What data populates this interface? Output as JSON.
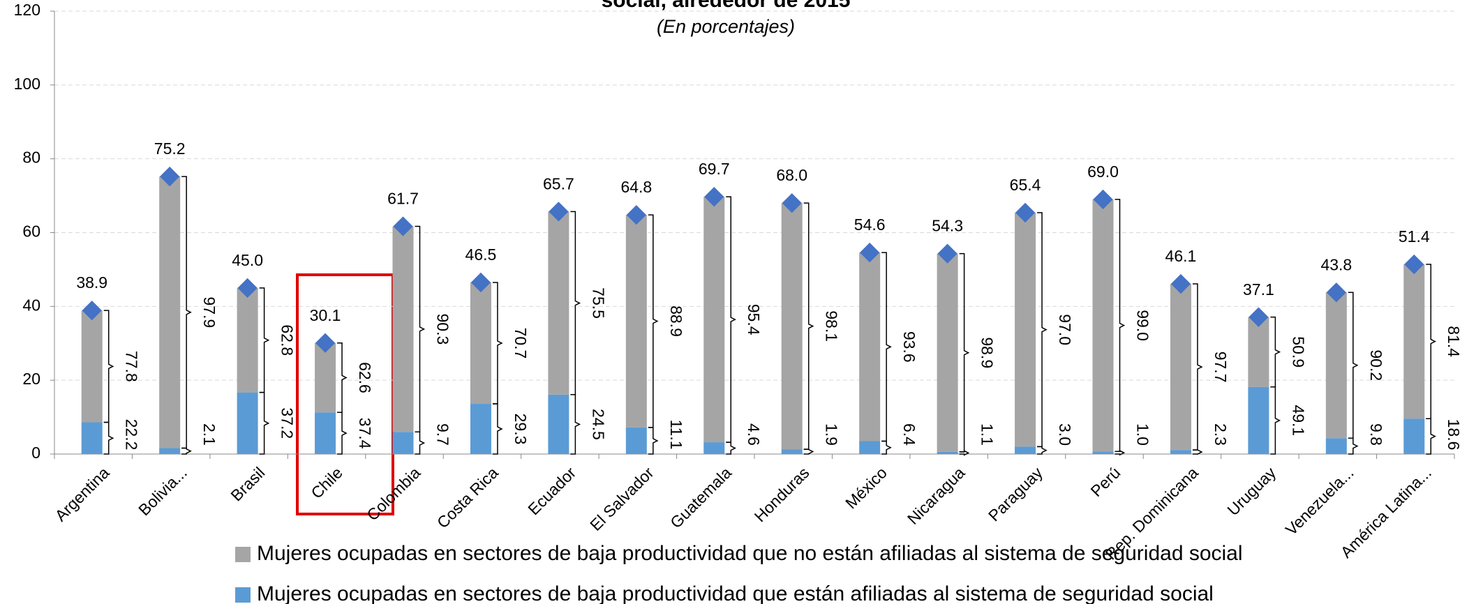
{
  "chart_data": {
    "type": "stacked-bar",
    "title": "social, alrededor de 2015",
    "subtitle": "(En porcentajes)",
    "categories": [
      "Argentina",
      "Bolivia...",
      "Brasil",
      "Chile",
      "Colombia",
      "Costa Rica",
      "Ecuador",
      "El Salvador",
      "Guatemala",
      "Honduras",
      "México",
      "Nicaragua",
      "Paraguay",
      "Perú",
      "Rep. Dominicana",
      "Uruguay",
      "Venezuela...",
      "América Latina..."
    ],
    "series": [
      {
        "name": "Mujeres ocupadas en sectores de baja productividad que están afiliadas al sistema de seguridad social",
        "color": "#5b9bd5",
        "values": [
          8.6,
          1.6,
          16.7,
          11.3,
          6.0,
          13.6,
          16.1,
          7.2,
          3.2,
          1.3,
          3.5,
          0.6,
          2.0,
          0.7,
          1.1,
          18.2,
          4.3,
          9.6
        ]
      },
      {
        "name": "Mujeres ocupadas en sectores de baja productividad que no están afiliadas al sistema de seguridad social",
        "color": "#a5a5a5",
        "values": [
          30.3,
          73.6,
          28.3,
          18.8,
          55.7,
          32.9,
          49.6,
          57.6,
          66.5,
          66.7,
          51.1,
          53.7,
          63.4,
          68.3,
          45.0,
          18.9,
          39.5,
          41.8
        ]
      }
    ],
    "totals": {
      "color": "#4472c4",
      "values": [
        38.9,
        75.2,
        45.0,
        30.1,
        61.7,
        46.5,
        65.7,
        64.8,
        69.7,
        68.0,
        54.6,
        54.3,
        65.4,
        69.0,
        46.1,
        37.1,
        43.8,
        51.4
      ],
      "value_labels": [
        "38.9",
        "75.2",
        "45.0",
        "30.1",
        "61.7",
        "46.5",
        "65.7",
        "64.8",
        "69.7",
        "68.0",
        "54.6",
        "54.3",
        "65.4",
        "69.0",
        "46.1",
        "37.1",
        "43.8",
        "51.4"
      ]
    },
    "shares": [
      {
        "values": [
          22.2,
          2.1,
          37.2,
          37.4,
          9.7,
          29.3,
          24.5,
          11.1,
          4.6,
          1.9,
          6.4,
          1.1,
          3.0,
          1.0,
          2.3,
          49.1,
          9.8,
          18.6
        ],
        "value_labels": [
          "22.2",
          "2.1",
          "37.2",
          "37.4",
          "9.7",
          "29.3",
          "24.5",
          "11.1",
          "4.6",
          "1.9",
          "6.4",
          "1.1",
          "3.0",
          "1.0",
          "2.3",
          "49.1",
          "9.8",
          "18.6"
        ]
      },
      {
        "values": [
          77.8,
          97.9,
          62.8,
          62.6,
          90.3,
          70.7,
          75.5,
          88.9,
          95.4,
          98.1,
          93.6,
          98.9,
          97.0,
          99.0,
          97.7,
          50.9,
          90.2,
          81.4
        ],
        "value_labels": [
          "77.8",
          "97.9",
          "62.8",
          "62.6",
          "90.3",
          "70.7",
          "75.5",
          "88.9",
          "95.4",
          "98.1",
          "93.6",
          "98.9",
          "97.0",
          "99.0",
          "97.7",
          "50.9",
          "90.2",
          "81.4"
        ]
      }
    ],
    "ylim": [
      0,
      120
    ],
    "yticks": [
      0,
      20,
      40,
      60,
      80,
      100,
      120
    ],
    "grid": true,
    "legend": "bottom"
  }
}
